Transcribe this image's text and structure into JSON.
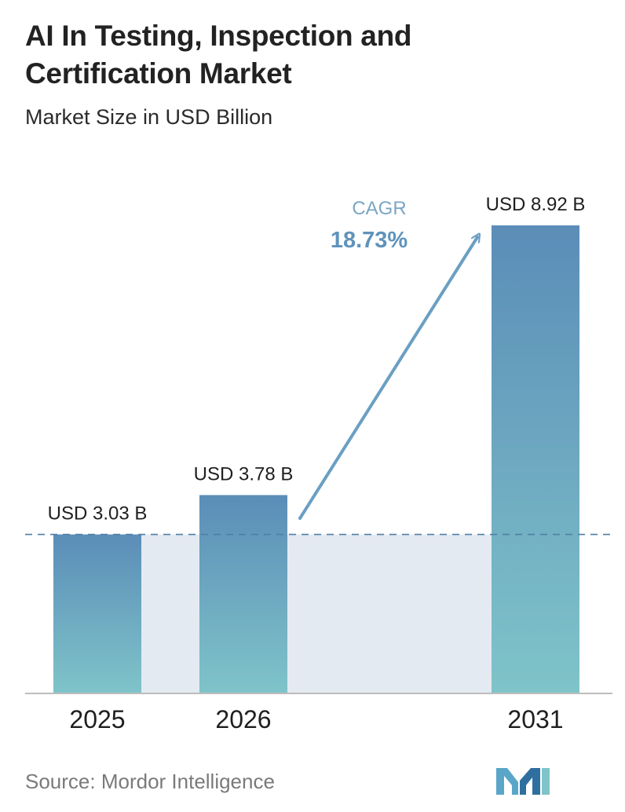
{
  "title": "AI In Testing, Inspection and Certification Market",
  "subtitle": "Market Size in USD Billion",
  "source": "Source: Mordor Intelligence",
  "cagr": {
    "label": "CAGR",
    "value": "18.73%"
  },
  "colors": {
    "bar_top": "#5b8db8",
    "bar_bottom": "#7fc4c9",
    "band": "#e4eaf2",
    "dashed_line": "#4f7ea6",
    "arrow": "#6a9fc3",
    "cagr_label": "#7aa6c6",
    "cagr_value": "#5f93bb"
  },
  "chart_data": {
    "type": "bar",
    "categories": [
      "2025",
      "2026",
      "2031"
    ],
    "values": [
      3.03,
      3.78,
      8.92
    ],
    "value_labels": [
      "USD 3.03 B",
      "USD 3.78 B",
      "USD 8.92 B"
    ],
    "title": "AI In Testing, Inspection and Certification Market",
    "subtitle": "Market Size in USD Billion",
    "xlabel": "",
    "ylabel": "",
    "ylim": [
      0,
      8.92
    ],
    "grid": false,
    "reference_line_value": 3.03
  }
}
